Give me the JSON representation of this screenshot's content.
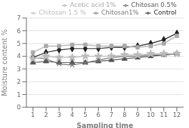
{
  "chart_data": {
    "type": "line",
    "x": [
      1,
      2,
      3,
      4,
      5,
      6,
      7,
      8,
      9,
      10,
      11,
      12
    ],
    "series": [
      {
        "name": "Control",
        "color": "#222222",
        "marker": "diamond",
        "values": [
          3.9,
          4.3,
          4.5,
          4.6,
          4.6,
          4.6,
          4.7,
          4.7,
          4.8,
          5.0,
          5.3,
          5.8
        ]
      },
      {
        "name": "Acetic acid 1%",
        "color": "#aaaaaa",
        "marker": "square",
        "values": [
          4.3,
          4.8,
          4.8,
          4.9,
          4.9,
          4.8,
          4.8,
          4.8,
          4.7,
          4.8,
          5.0,
          5.6
        ]
      },
      {
        "name": "Chitosan 0.5%",
        "color": "#555555",
        "marker": "triangle",
        "values": [
          3.5,
          3.6,
          3.5,
          3.5,
          3.5,
          3.6,
          3.7,
          3.8,
          3.9,
          4.0,
          4.1,
          4.2
        ]
      },
      {
        "name": "Chitosan1%",
        "color": "#777777",
        "marker": "x",
        "values": [
          3.9,
          3.8,
          3.4,
          3.3,
          3.5,
          3.7,
          3.9,
          4.0,
          4.0,
          4.1,
          4.1,
          4.2
        ]
      },
      {
        "name": "Chitosan 1.5 %",
        "color": "#bbbbbb",
        "marker": "star",
        "values": [
          3.8,
          4.0,
          3.9,
          3.9,
          4.0,
          4.0,
          4.0,
          4.1,
          4.1,
          4.2,
          4.2,
          4.2
        ]
      }
    ],
    "xlabel": "Sampling time",
    "ylabel": "Moisture content %",
    "xlim": [
      0.5,
      12.5
    ],
    "xticks": [
      1,
      2,
      3,
      4,
      5,
      6,
      7,
      8,
      9,
      10,
      11,
      12
    ],
    "ylim": [
      0,
      7
    ],
    "yticks": [
      0,
      1,
      2,
      3,
      4,
      5,
      6,
      7
    ],
    "grid": "y",
    "legend": "upper right"
  }
}
